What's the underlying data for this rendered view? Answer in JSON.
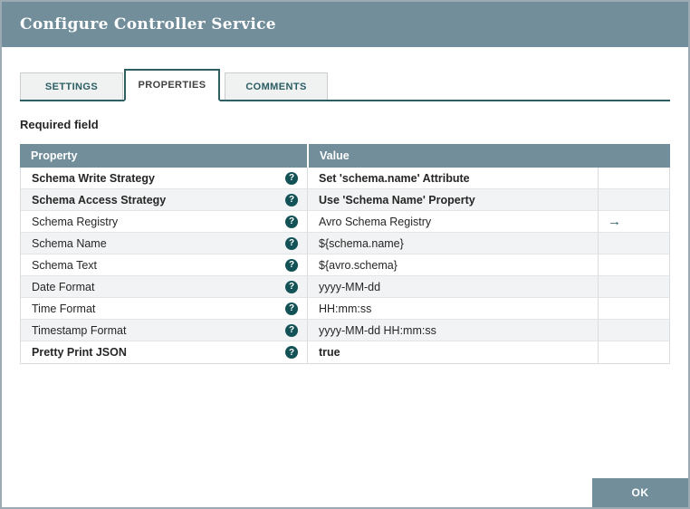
{
  "colors": {
    "titlebar_bg": "#728e9b",
    "accent_teal": "#2d5f63",
    "help_icon_bg": "#135358",
    "row_alt_bg": "#f1f3f4"
  },
  "dialog": {
    "title": "Configure Controller Service"
  },
  "tabs": [
    {
      "label": "SETTINGS",
      "active": false
    },
    {
      "label": "PROPERTIES",
      "active": true
    },
    {
      "label": "COMMENTS",
      "active": false
    }
  ],
  "content": {
    "required_label": "Required field"
  },
  "properties_table": {
    "headers": [
      "Property",
      "Value"
    ],
    "help_icon": "?",
    "go_to_icon": "→",
    "rows": [
      {
        "property": "Schema Write Strategy",
        "value": "Set 'schema.name' Attribute",
        "bold": true,
        "has_arrow": false
      },
      {
        "property": "Schema Access Strategy",
        "value": "Use 'Schema Name' Property",
        "bold": true,
        "has_arrow": false
      },
      {
        "property": "Schema Registry",
        "value": "Avro Schema Registry",
        "bold": false,
        "has_arrow": true
      },
      {
        "property": "Schema Name",
        "value": "${schema.name}",
        "bold": false,
        "has_arrow": false
      },
      {
        "property": "Schema Text",
        "value": "${avro.schema}",
        "bold": false,
        "has_arrow": false
      },
      {
        "property": "Date Format",
        "value": "yyyy-MM-dd",
        "bold": false,
        "has_arrow": false
      },
      {
        "property": "Time Format",
        "value": "HH:mm:ss",
        "bold": false,
        "has_arrow": false
      },
      {
        "property": "Timestamp Format",
        "value": "yyyy-MM-dd HH:mm:ss",
        "bold": false,
        "has_arrow": false
      },
      {
        "property": "Pretty Print JSON",
        "value": "true",
        "bold": true,
        "has_arrow": false
      }
    ]
  },
  "footer": {
    "ok_label": "OK"
  }
}
